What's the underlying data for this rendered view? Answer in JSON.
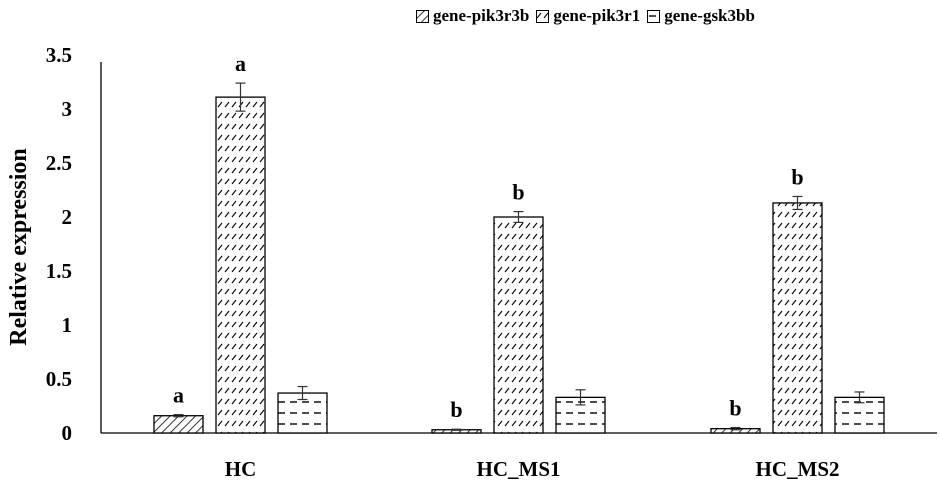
{
  "chart_data": {
    "type": "bar",
    "title": "",
    "xlabel": "",
    "ylabel": "Relative expression",
    "ylim": [
      0,
      3.5
    ],
    "yticks": [
      0,
      0.5,
      1,
      1.5,
      2,
      2.5,
      3,
      3.5
    ],
    "ytick_labels": [
      "0",
      "0.5",
      "1",
      "1.5",
      "2",
      "2.5",
      "3",
      "3.5"
    ],
    "grid": false,
    "legend_position": "top-right",
    "categories": [
      "HC",
      "HC_MS1",
      "HC_MS2"
    ],
    "series": [
      {
        "name": "gene-pik3r3b",
        "pattern": "diagonal-hatch",
        "values": [
          0.16,
          0.03,
          0.04
        ],
        "errors": [
          0.01,
          0.005,
          0.01
        ],
        "letters": [
          "a",
          "b",
          "b"
        ]
      },
      {
        "name": "gene-pik3r1",
        "pattern": "dashed-diagonal",
        "values": [
          3.11,
          2.0,
          2.13
        ],
        "errors": [
          0.13,
          0.05,
          0.06
        ],
        "letters": [
          "a",
          "b",
          "b"
        ]
      },
      {
        "name": "gene-gsk3bb",
        "pattern": "horizontal-dashes",
        "values": [
          0.37,
          0.33,
          0.33
        ],
        "errors": [
          0.06,
          0.07,
          0.05
        ],
        "letters": [
          "",
          "",
          ""
        ]
      }
    ]
  },
  "legend": {
    "items": [
      {
        "label": "gene-pik3r3b",
        "pattern": "diagonal-hatch"
      },
      {
        "label": "gene-pik3r1",
        "pattern": "dashed-diagonal"
      },
      {
        "label": "gene-gsk3bb",
        "pattern": "horizontal-dashes"
      }
    ]
  },
  "colors": {
    "axis": "#000000",
    "bar_fill": "#ffffff",
    "bar_stroke": "#000000"
  }
}
